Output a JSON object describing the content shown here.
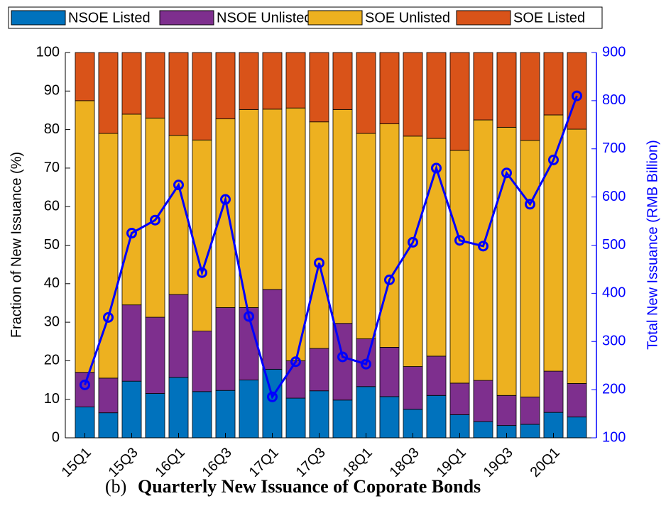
{
  "chart_data": {
    "type": "bar",
    "stacked": true,
    "caption_label": "(b)",
    "title": "Quarterly New Issuance of Coporate Bonds",
    "ylabel": "Fraction of New Issuance (%)",
    "y2label": "Total New Issuance (RMB Billion)",
    "categories": [
      "15Q1",
      null,
      "15Q3",
      null,
      "16Q1",
      null,
      "16Q3",
      null,
      "17Q1",
      null,
      "17Q3",
      null,
      "18Q1",
      null,
      "18Q3",
      null,
      "19Q1",
      null,
      "19Q3",
      null,
      "20Q1",
      null
    ],
    "series": [
      {
        "name": "NSOE Listed",
        "color": "#0072bd",
        "values": [
          8,
          6.5,
          14.7,
          11.5,
          15.7,
          12,
          12.3,
          15,
          17.8,
          10.3,
          12.2,
          9.8,
          13.3,
          10.7,
          7.4,
          11,
          6,
          4.2,
          3.2,
          3.5,
          6.6,
          5.4
        ]
      },
      {
        "name": "NSOE Unlisted",
        "color": "#7e2f8e",
        "values": [
          9,
          9,
          19.8,
          19.8,
          21.5,
          15.7,
          21.5,
          18.8,
          20.7,
          9.7,
          11,
          19.9,
          12.4,
          12.8,
          11.1,
          10.2,
          8.2,
          10.7,
          7.8,
          7.1,
          10.7,
          8.7
        ]
      },
      {
        "name": "SOE Unlisted",
        "color": "#edb120",
        "values": [
          70.5,
          63.5,
          49.5,
          51.7,
          41.3,
          49.6,
          49,
          51.4,
          46.8,
          65.6,
          58.8,
          55.5,
          53.3,
          58,
          59.8,
          56.5,
          60.4,
          67.6,
          69.6,
          66.6,
          66.5,
          66
        ]
      },
      {
        "name": "SOE Listed",
        "color": "#d95319",
        "values": [
          12.5,
          21,
          16,
          17,
          21.5,
          22.7,
          17.2,
          14.8,
          14.7,
          14.4,
          18,
          14.8,
          21,
          18.5,
          21.7,
          22.3,
          25.4,
          17.5,
          19.4,
          22.8,
          16.2,
          19.9
        ]
      },
      {
        "type": "line",
        "axis": "y2",
        "color": "#0000ff",
        "values": [
          210,
          350,
          525,
          552,
          625,
          443,
          595,
          352,
          185,
          258,
          463,
          268,
          253,
          428,
          506,
          660,
          510,
          498,
          650,
          585,
          677,
          810
        ]
      }
    ],
    "ylim": [
      0,
      100
    ],
    "yticks": [
      0,
      10,
      20,
      30,
      40,
      50,
      60,
      70,
      80,
      90,
      100
    ],
    "y2lim": [
      100,
      900
    ],
    "y2ticks": [
      100,
      200,
      300,
      400,
      500,
      600,
      700,
      800,
      900
    ],
    "legend": "top"
  }
}
